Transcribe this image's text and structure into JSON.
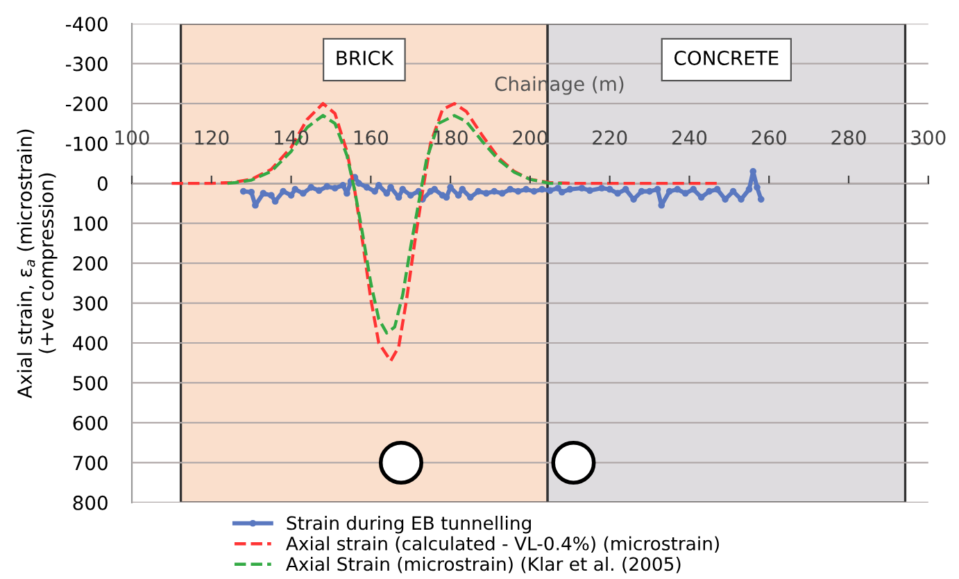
{
  "chart_data": {
    "type": "line",
    "xlabel": "Chainage (m)",
    "ylabel": "Axial strain, ε$_{a}$ (microstrain)\n(+ve compression)",
    "xlim": [
      100,
      300
    ],
    "xticks": [
      100,
      120,
      140,
      160,
      180,
      200,
      220,
      240,
      260,
      280,
      300
    ],
    "ylim": [
      800,
      -400
    ],
    "yticks": [
      -400,
      -300,
      -200,
      -100,
      0,
      100,
      200,
      300,
      400,
      500,
      600,
      700,
      800
    ],
    "grid": "y",
    "legend": "bottom",
    "bands": [
      {
        "axis": "x",
        "from": 112.3,
        "to": 204.4,
        "label": "BRICK",
        "color": "#fadfcc"
      },
      {
        "axis": "x",
        "from": 204.4,
        "to": 294.2,
        "label": "CONCRETE",
        "color": "#dedcdf"
      }
    ],
    "series": [
      {
        "name": "Strain during EB tunnelling",
        "color": "#5a78c0",
        "marker": "circle",
        "line_style": "solid",
        "x": [
          128,
          130,
          131,
          133,
          135,
          136,
          138,
          140,
          141,
          143,
          145,
          147,
          149,
          151,
          153,
          154,
          155,
          156,
          157,
          159,
          161,
          162,
          164,
          165,
          167,
          168,
          170,
          172,
          173,
          175,
          176,
          178,
          179,
          180,
          182,
          183,
          185,
          187,
          189,
          191,
          193,
          195,
          197,
          199,
          201,
          203,
          205,
          207,
          208,
          210,
          213,
          215,
          218,
          220,
          222,
          224,
          226,
          228,
          230,
          232,
          233,
          235,
          237,
          239,
          241,
          243,
          245,
          247,
          249,
          251,
          253,
          255,
          256,
          257,
          258
        ],
        "values": [
          20,
          22,
          55,
          25,
          30,
          45,
          20,
          30,
          15,
          25,
          10,
          18,
          8,
          12,
          5,
          25,
          -5,
          -15,
          0,
          10,
          20,
          5,
          25,
          10,
          35,
          15,
          30,
          20,
          40,
          20,
          15,
          30,
          35,
          10,
          30,
          15,
          35,
          20,
          25,
          20,
          25,
          15,
          20,
          15,
          20,
          15,
          18,
          12,
          22,
          15,
          12,
          18,
          12,
          15,
          25,
          15,
          40,
          20,
          20,
          15,
          55,
          20,
          15,
          25,
          15,
          35,
          20,
          15,
          40,
          20,
          40,
          15,
          -30,
          10,
          40
        ]
      },
      {
        "name": "Axial strain (calculated - VL-0.4%) (microstrain)",
        "color": "#ff3333",
        "marker": "none",
        "line_style": "dashed",
        "x": [
          110,
          120,
          125,
          130,
          135,
          140,
          144,
          148,
          151,
          154,
          156,
          158,
          160,
          162,
          165,
          167,
          169,
          171,
          173,
          175,
          178,
          181,
          184,
          188,
          192,
          196,
          200,
          205,
          210,
          220,
          230,
          240,
          248
        ],
        "values": [
          0,
          0,
          -2,
          -10,
          -35,
          -90,
          -160,
          -200,
          -175,
          -80,
          20,
          150,
          290,
          400,
          445,
          410,
          290,
          150,
          20,
          -100,
          -185,
          -200,
          -180,
          -120,
          -65,
          -30,
          -10,
          -2,
          0,
          0,
          0,
          0,
          0
        ]
      },
      {
        "name": "Axial Strain (microstrain) (Klar et al. (2005)",
        "color": "#33aa44",
        "marker": "none",
        "line_style": "dashed",
        "x": [
          124,
          126,
          130,
          135,
          140,
          144,
          148,
          151,
          154,
          156,
          158,
          160,
          162,
          164,
          166,
          168,
          170,
          172,
          174,
          177,
          181,
          184,
          188,
          192,
          196,
          200,
          205,
          208
        ],
        "values": [
          0,
          -2,
          -8,
          -30,
          -80,
          -140,
          -170,
          -150,
          -70,
          20,
          130,
          250,
          340,
          375,
          360,
          280,
          160,
          50,
          -60,
          -150,
          -170,
          -155,
          -105,
          -60,
          -28,
          -10,
          0,
          0
        ]
      }
    ]
  }
}
